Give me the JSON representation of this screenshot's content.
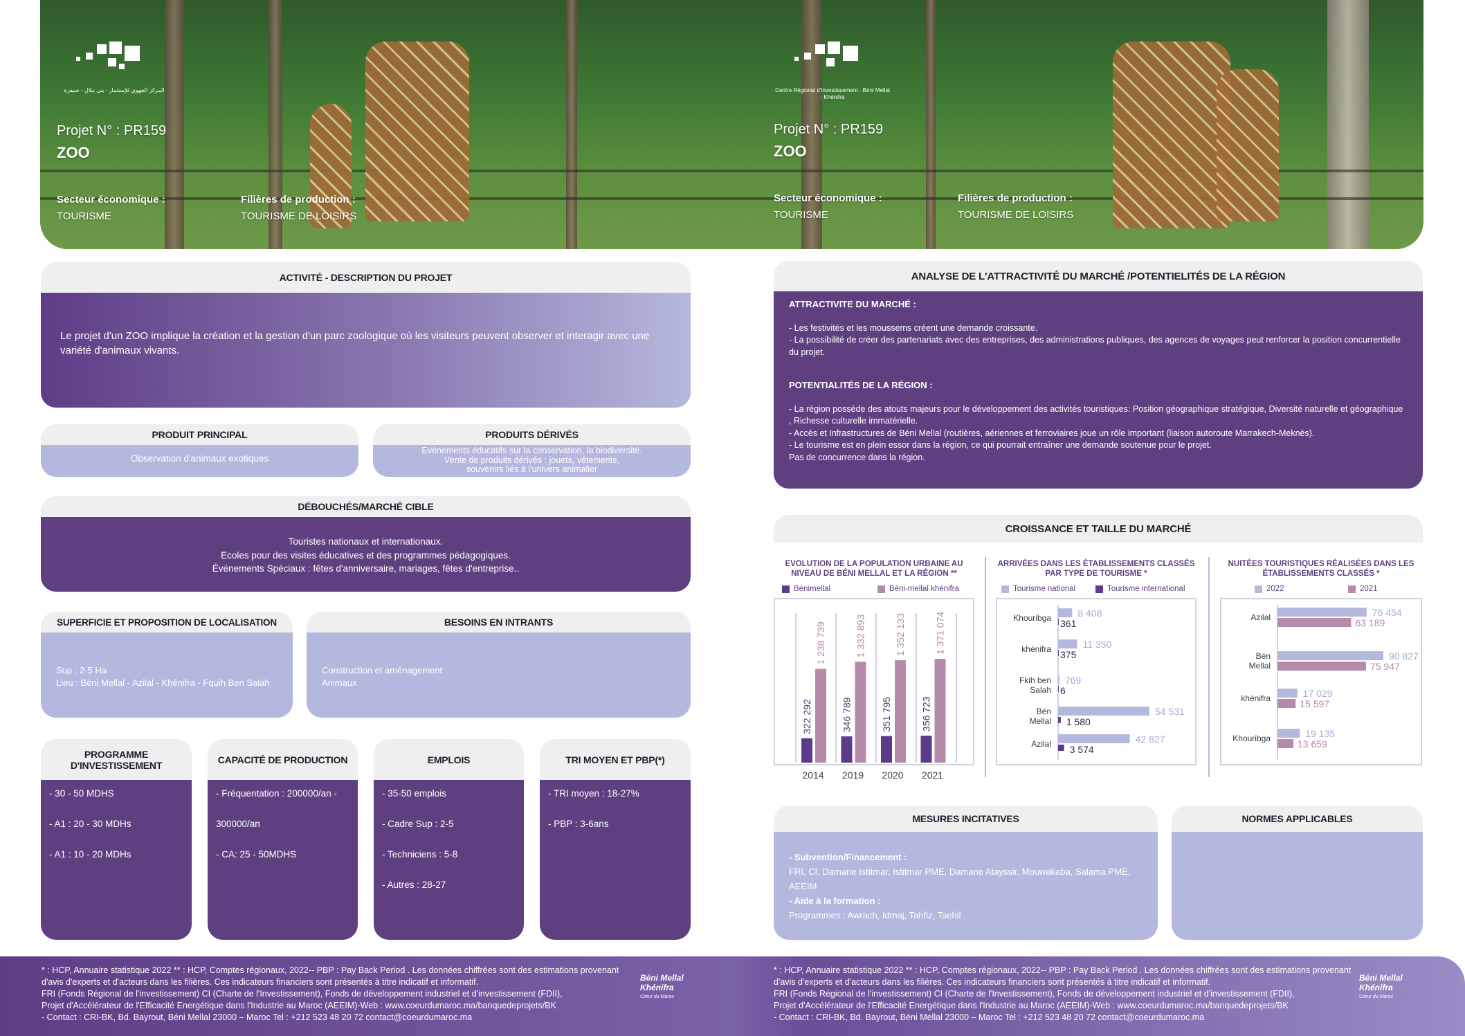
{
  "banner": {
    "logo_text_arabic": "المركز الجهوي للإستثمار - بني ملال - خنيفرة",
    "logo_text_fr": "Centre Régional d'Investissement · Béni Mellal - Khénifra",
    "project_label": "Projet N° :  PR159",
    "project_name": "ZOO",
    "sector_label": "Secteur économique :",
    "sector_value": "TOURISME",
    "filiere_label": "Filières de production :",
    "filiere_value": "TOURISME DE LOISIRS"
  },
  "activite": {
    "title": "ACTIVITÉ - DESCRIPTION DU PROJET",
    "text": "Le projet d'un ZOO implique la création et la gestion d'un parc zoologique où les visiteurs peuvent observer et interagir avec une variété d'animaux vivants."
  },
  "produit_principal": {
    "title": "PRODUIT PRINCIPAL",
    "text": "Observation d'animaux exotiques"
  },
  "produits_derives": {
    "title": "PRODUITS DÉRIVÉS",
    "lines": [
      "Evénements éducatifs sur la conservation, la biodiversité.",
      "Vente de produits dérivés : jouets, vêtements,",
      "souvenirs liés à l'univers animalier"
    ]
  },
  "debouches": {
    "title": "DÉBOUCHÉS/MARCHÉ CIBLE",
    "lines": [
      "Touristes nationaux et internationaux.",
      "Ecoles pour des visites éducatives et des programmes pédagogiques.",
      "Événements Spéciaux : fêtes d'anniversaire, mariages, fêtes d'entreprise.."
    ]
  },
  "superficie": {
    "title": "SUPERFICIE ET PROPOSITION DE LOCALISATION",
    "lines": [
      "Sup : 2-5 Ha",
      "Lieu : Béni Mellal - Azilal - Khénifra - Fquih Ben Salah"
    ]
  },
  "besoins": {
    "title": "BESOINS EN INTRANTS",
    "lines": [
      "Construction et aménagement",
      "Animaux"
    ]
  },
  "programme": {
    "title": "PROGRAMME D'INVESTISSEMENT",
    "lines": [
      "- 30 - 50 MDHS",
      "- A1 : 20 - 30 MDHs",
      "- A1 : 10 - 20 MDHs"
    ]
  },
  "capacite": {
    "title": "CAPACITÉ DE PRODUCTION",
    "lines": [
      "- Fréquentation : 200000/an -",
      "300000/an",
      "- CA: 25 - 50MDHS"
    ]
  },
  "emplois": {
    "title": "EMPLOIS",
    "lines": [
      "- 35-50 emplois",
      "- Cadre Sup : 2-5",
      "- Techniciens : 5-8",
      "- Autres  : 28-27"
    ]
  },
  "tri": {
    "title": "TRI MOYEN ET PBP(*)",
    "lines": [
      "- TRI moyen : 18-27%",
      "- PBP : 3-6ans"
    ]
  },
  "analyse": {
    "title": "ANALYSE DE L'ATTRACTIVITÉ DU MARCHÉ /POTENTIELITÉS DE LA RÉGION",
    "attr_title": "ATTRACTIVITE DU MARCHÉ :",
    "attr_lines": [
      "- Les festivités et les moussems créent une demande croissante.",
      "- La possibilité de créer des partenariats avec des entreprises, des administrations publiques, des agences de voyages peut renforcer la position concurrentielle du projet."
    ],
    "pot_title": "POTENTIALITÉS DE LA RÉGION :",
    "pot_lines": [
      "- La région possède des atouts majeurs pour le développement des activités touristiques: Position géographique stratégique, Diversité naturelle et géographique , Richesse culturelle immatérielle.",
      "- Accès et Infrastructures de Béni Mellal (routières, aériennes et ferroviaires joue un rôle important (liaison autoroute Marrakech-Meknès).",
      "- Le tourisme est en plein essor dans la région, ce qui pourrait entraîner une demande soutenue pour le projet.",
      "Pas de concurrence dans la région."
    ]
  },
  "croissance": {
    "title": "CROISSANCE ET TAILLE DU MARCHÉ"
  },
  "chart_data": [
    {
      "type": "bar",
      "orientation": "vertical",
      "title": "EVOLUTION DE LA POPULATION URBAINE AU NIVEAU DE BÉNI MELLAL ET LA RÉGION **",
      "categories": [
        "2014",
        "2019",
        "2020",
        "2021"
      ],
      "series": [
        {
          "name": "Bénimellal",
          "values": [
            322292,
            346789,
            351795,
            356723
          ],
          "labels": [
            "322 292",
            "346 789",
            "351 795",
            "356 723"
          ],
          "color": "#5e3a8a"
        },
        {
          "name": "Béni-mellal khénifra",
          "values": [
            1238739,
            1332893,
            1352133,
            1371074
          ],
          "labels": [
            "1 238 739",
            "1 332 893",
            "1 352 133",
            "1 371 074"
          ],
          "color": "#b58aab"
        }
      ],
      "legend": "top"
    },
    {
      "type": "bar",
      "orientation": "horizontal",
      "title": "ARRIVÉES DANS LES ÉTABLISSEMENTS CLASSÉS PAR TYPE DE TOURISME *",
      "categories": [
        "Khouribga",
        "khénifra",
        "Fkih ben Salah",
        "Bén Mellal",
        "Azilal"
      ],
      "series": [
        {
          "name": "Tourisme national",
          "values": [
            8408,
            11350,
            769,
            54531,
            42827
          ],
          "labels": [
            "8 408",
            "11 350",
            "769",
            "54 531",
            "42 827"
          ],
          "color": "#b5b8de"
        },
        {
          "name": "Tourisme international",
          "values": [
            361,
            375,
            6,
            1580,
            3574
          ],
          "labels": [
            "361",
            "375",
            "6",
            "1 580",
            "3 574"
          ],
          "color": "#5e3a8a"
        }
      ],
      "legend": "top"
    },
    {
      "type": "bar",
      "orientation": "horizontal",
      "title": "NUITÉES TOURISTIQUES RÉALISÉES DANS LES ÉTABLISSEMENTS CLASSÉS *",
      "categories": [
        "Azilal",
        "Bén Mellal",
        "khénifra",
        "Khouribga"
      ],
      "series": [
        {
          "name": "2022",
          "values": [
            76454,
            90827,
            17029,
            19135
          ],
          "labels": [
            "76 454",
            "90 827",
            "17 029",
            "19 135"
          ],
          "color": "#b5b8de"
        },
        {
          "name": "2021",
          "values": [
            63189,
            75947,
            15597,
            13659
          ],
          "labels": [
            "63 189",
            "75 947",
            "15 597",
            "13 659"
          ],
          "color": "#b58aab"
        }
      ],
      "legend": "top"
    }
  ],
  "mesures": {
    "title": "MESURES INCITATIVES",
    "sub1": " - Subvention/Financement :",
    "text1": "FRI, CI, Damane Istitmar, Istitmar PME, Damane Atayssir, Mouwakaba, Salama PME, AEEIM",
    "sub2": "- Aide à la formation :",
    "text2": "Programmes :  Awrach, Idmaj, Tahfiz, Taehil"
  },
  "normes": {
    "title": "NORMES APPLICABLES"
  },
  "footer": {
    "lines": [
      "* : HCP, Annuaire statistique 2022 ** : HCP, Comptes régionaux, 2022-- PBP : Pay Back Period . Les données chiffrées sont des estimations provenant d'avis d'experts et d'acteurs dans les filières. Ces indicateurs financiers sont présentés à titre indicatif et informatif.",
      "FRI (Fonds Régional de l'investissement) CI (Charte de l'Investissement), Fonds de développement industriel et d'investissement (FDII),",
      "Projet d'Accélérateur de l'Efficacité Energétique dans l'Industrie au Maroc (AEEIM)-Web : www.coeurdumaroc.ma/banquedeprojets/BK",
      "- Contact : CRI-BK, Bd. Bayrout, Béni Mellal 23000 – Maroc Tel : +212 523 48 20 72 contact@coeurdumaroc.ma"
    ],
    "logo_text": "Béni Mellal Khénifra",
    "logo_sub": "Cœur du Maroc"
  },
  "colors": {
    "dark_purple": "#5e4080",
    "lavender": "#b5b8de",
    "mauve": "#b58aab",
    "header_bg": "#efefef"
  }
}
